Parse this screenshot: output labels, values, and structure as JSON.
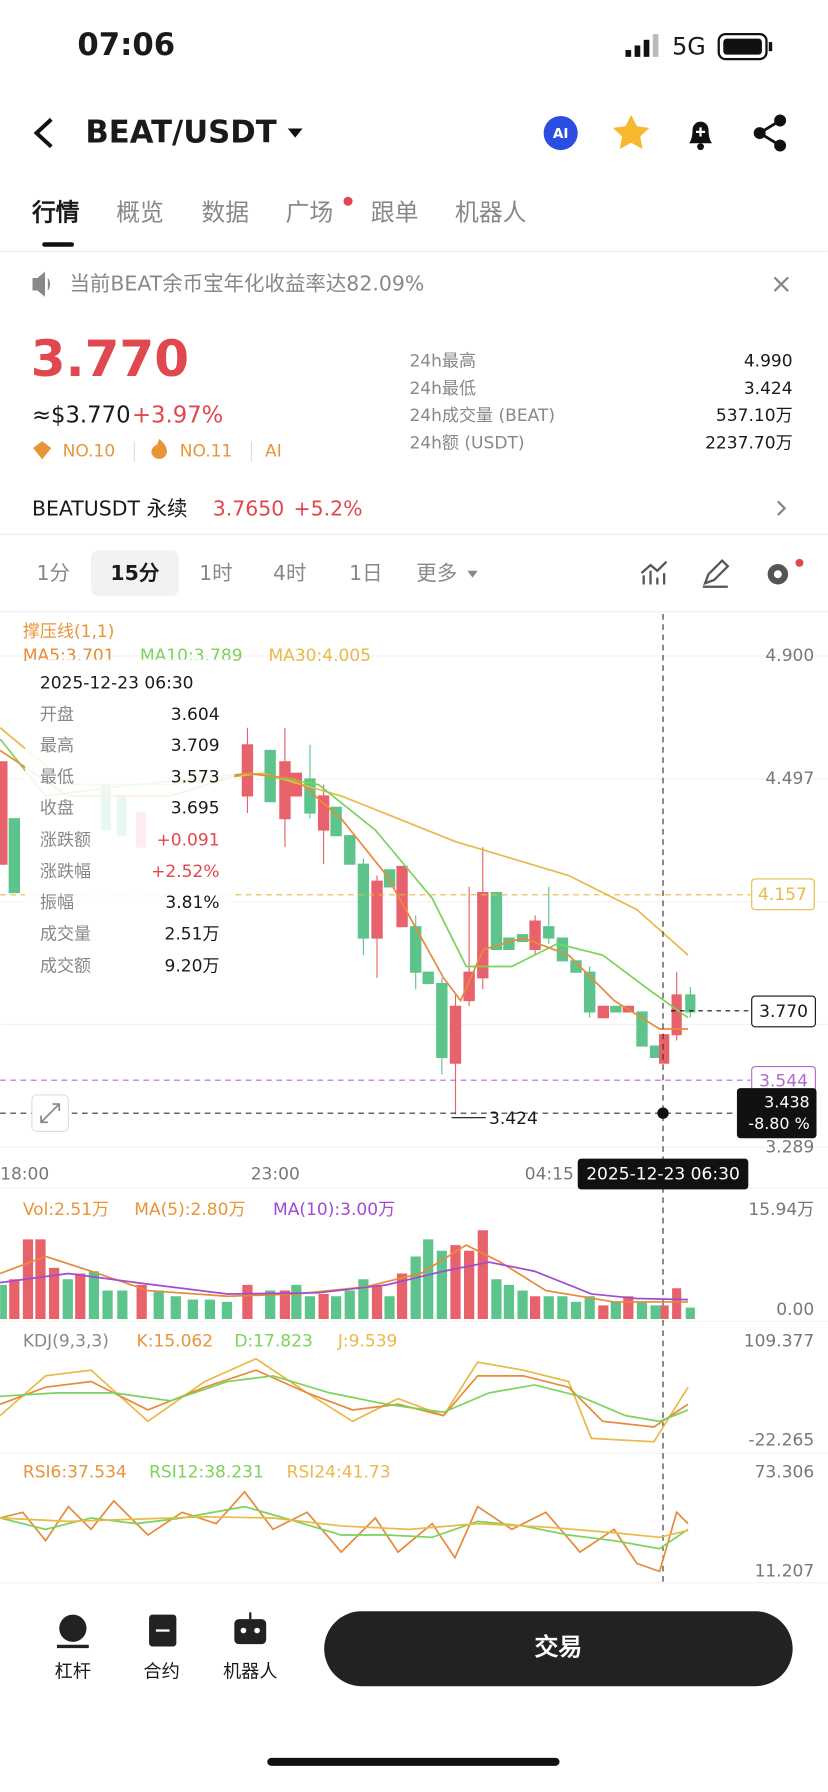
{
  "status": {
    "time": "07:06",
    "network": "5G"
  },
  "header": {
    "pair": "BEAT/USDT",
    "ai": "AI"
  },
  "tabs": [
    "行情",
    "概览",
    "数据",
    "广场",
    "跟单",
    "机器人"
  ],
  "notice": "当前BEAT余币宝年化收益率达82.09%",
  "price": {
    "last": "3.770",
    "usd": "≈$3.770",
    "change": "+3.97%",
    "rank1": "NO.10",
    "rank2": "NO.11",
    "ai": "AI"
  },
  "stats": [
    {
      "label": "24h最高",
      "value": "4.990"
    },
    {
      "label": "24h最低",
      "value": "3.424"
    },
    {
      "label": "24h成交量 (BEAT)",
      "value": "537.10万"
    },
    {
      "label": "24h额 (USDT)",
      "value": "2237.70万"
    }
  ],
  "perpetual": {
    "name": "BEATUSDT 永续",
    "price": "3.7650",
    "change": "+5.2%"
  },
  "intervals": [
    "1分",
    "15分",
    "1时",
    "4时",
    "1日",
    "更多"
  ],
  "chart": {
    "indicator": "撑压线(1,1)",
    "ma": [
      "MA5:3.701",
      "MA10:3.789",
      "MA30:4.005"
    ],
    "price_axis": [
      "4.900",
      "4.497",
      "4.157",
      "3.770",
      "3.544",
      "3.289"
    ],
    "time_axis": [
      "18:00",
      "23:00",
      "04:15"
    ],
    "low_label": "3.424",
    "cursor_price": "3.438",
    "cursor_change": "-8.80 %",
    "cursor_time": "2025-12-23 06:30"
  },
  "tooltip": {
    "time": "2025-12-23 06:30",
    "rows": [
      {
        "label": "开盘",
        "value": "3.604"
      },
      {
        "label": "最高",
        "value": "3.709"
      },
      {
        "label": "最低",
        "value": "3.573"
      },
      {
        "label": "收盘",
        "value": "3.695"
      },
      {
        "label": "涨跌额",
        "value": "+0.091"
      },
      {
        "label": "涨跌幅",
        "value": "+2.52%"
      },
      {
        "label": "振幅",
        "value": "3.81%"
      },
      {
        "label": "成交量",
        "value": "2.51万"
      },
      {
        "label": "成交额",
        "value": "9.20万"
      }
    ]
  },
  "volume": {
    "vol": "Vol:2.51万",
    "ma5": "MA(5):2.80万",
    "ma10": "MA(10):3.00万",
    "max": "15.94万",
    "min": "0.00"
  },
  "kdj": {
    "name": "KDJ(9,3,3)",
    "k": "K:15.062",
    "d": "D:17.823",
    "j": "J:9.539",
    "max": "109.377",
    "min": "-22.265"
  },
  "rsi": {
    "r6": "RSI6:37.534",
    "r12": "RSI12:38.231",
    "r24": "RSI24:41.73",
    "max": "73.306",
    "min": "11.207"
  },
  "bottom": {
    "items": [
      "杠杆",
      "合约",
      "机器人"
    ],
    "trade": "交易"
  }
}
